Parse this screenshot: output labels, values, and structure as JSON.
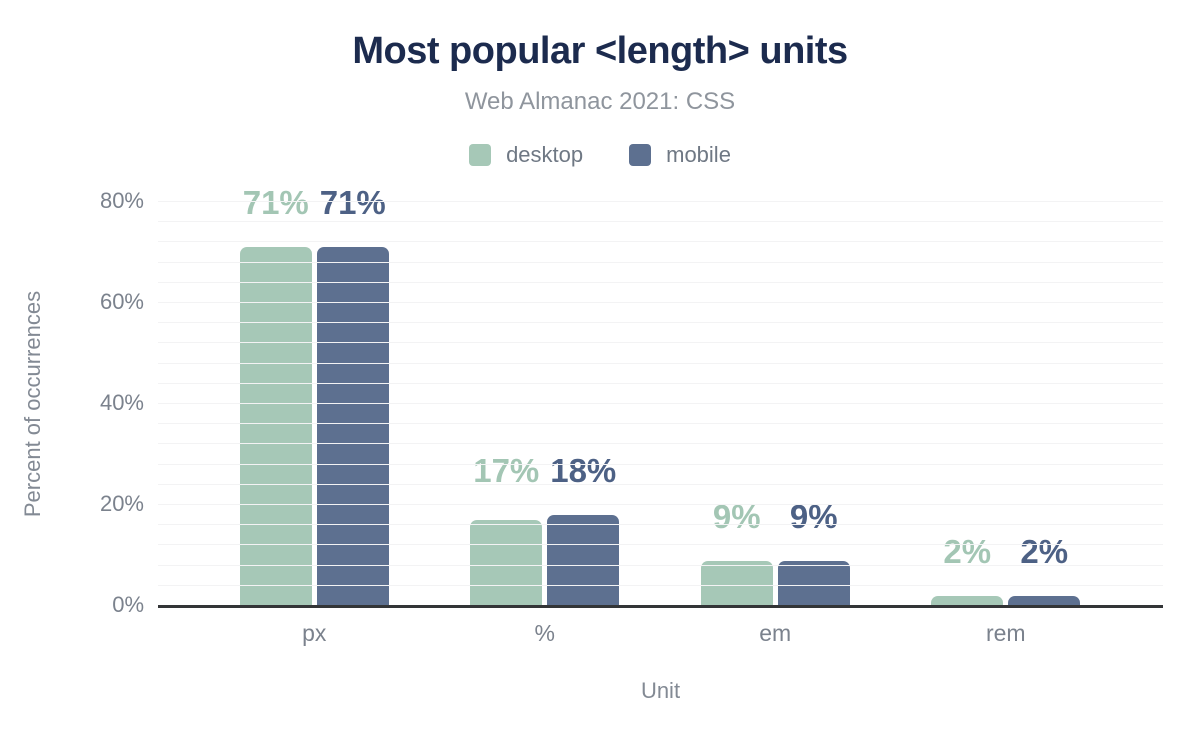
{
  "header": {
    "title": "Most popular <length> units",
    "subtitle": "Web Almanac 2021: CSS"
  },
  "legend": [
    {
      "name": "desktop",
      "label": "desktop",
      "color": "#a6c8b7"
    },
    {
      "name": "mobile",
      "label": "mobile",
      "color": "#5d7090"
    }
  ],
  "chart_data": {
    "type": "bar",
    "title": "Most popular <length> units",
    "subtitle": "Web Almanac 2021: CSS",
    "categories": [
      "px",
      "%",
      "em",
      "rem"
    ],
    "series": [
      {
        "name": "desktop",
        "color": "#a6c8b7",
        "label_color": "#a3c6b4",
        "values": [
          71,
          17,
          9,
          2
        ]
      },
      {
        "name": "mobile",
        "color": "#5d7090",
        "label_color": "#4d6185",
        "values": [
          71,
          18,
          9,
          2
        ]
      }
    ],
    "value_suffix": "%",
    "xlabel": "Unit",
    "ylabel": "Percent of occurrences",
    "y_ticks": [
      0,
      20,
      40,
      60,
      80
    ],
    "ylim": [
      0,
      80
    ],
    "grid_step_pct": 4,
    "grid": true,
    "legend_position": "top",
    "colors": {
      "title": "#1c2b4e",
      "subtitle": "#8f959d",
      "axis_text": "#7b828d",
      "axis_line": "#333537",
      "gridline": "#f3f3f4"
    }
  }
}
